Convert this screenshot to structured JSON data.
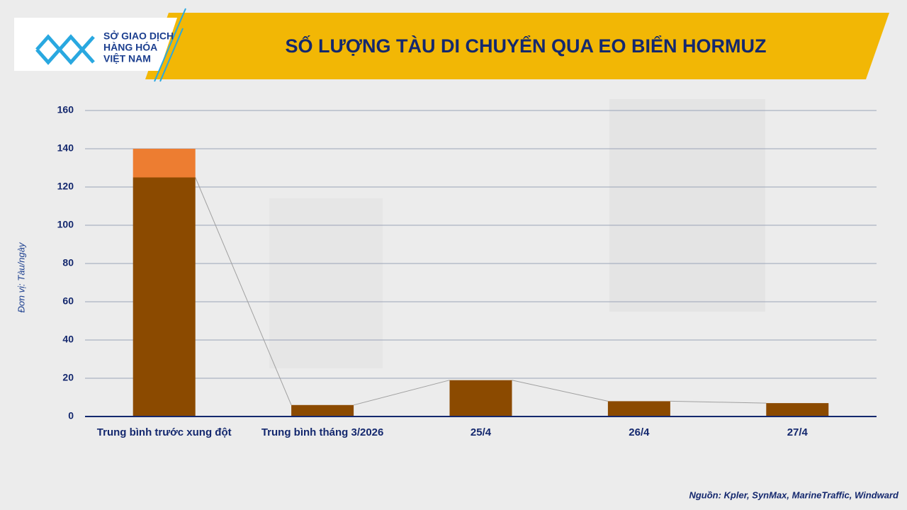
{
  "logo": [
    "SỞ GIAO DỊCH",
    "HÀNG HÓA",
    "VIỆT NAM"
  ],
  "chart_data": {
    "type": "stacked_bar",
    "title": "SỐ LƯỢNG TÀU DI CHUYỂN QUA EO BIỂN HORMUZ",
    "y_label": "Đơn vị: Tàu/ngày",
    "source": "Nguồn: Kpler, SynMax, MarineTraffic,  Windward",
    "categories": [
      "Trung bình trước xung đột",
      "Trung bình tháng 3/2026",
      "25/4",
      "26/4",
      "27/4"
    ],
    "series": [
      {
        "color": "#8B4A00",
        "values": [
          125,
          6,
          19,
          8,
          7
        ]
      },
      {
        "color": "#ED7D31",
        "values": [
          15,
          null,
          null,
          null,
          null
        ]
      }
    ],
    "ylim": [
      0,
      160
    ],
    "yticks": [
      0,
      20,
      40,
      60,
      80,
      100,
      120,
      140,
      160
    ],
    "grid": true
  }
}
